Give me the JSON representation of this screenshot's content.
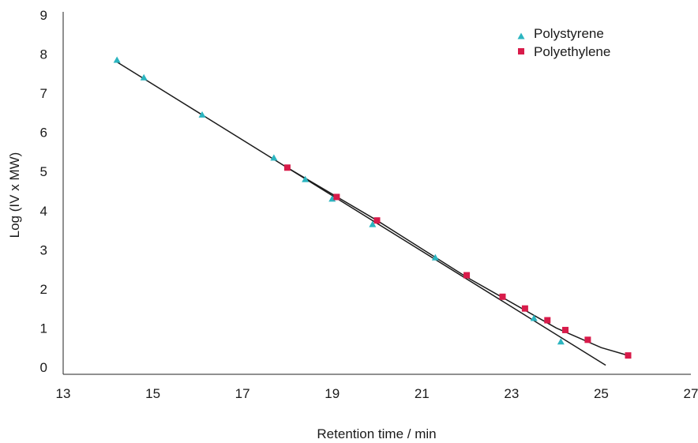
{
  "chart_data": {
    "type": "scatter",
    "title": "",
    "xlabel": "Retention time / min",
    "ylabel": "Log (IV x MW)",
    "xlim": [
      13,
      27
    ],
    "ylim": [
      0,
      9
    ],
    "x_ticks": [
      13,
      15,
      17,
      19,
      21,
      23,
      25,
      27
    ],
    "y_ticks": [
      0,
      1,
      2,
      3,
      4,
      5,
      6,
      7,
      8,
      9
    ],
    "grid": false,
    "legend_position": "top-right",
    "series": [
      {
        "name": "Polystyrene",
        "marker": "triangle",
        "color": "#2bb5c0",
        "points": [
          [
            14.2,
            7.85
          ],
          [
            14.8,
            7.4
          ],
          [
            16.1,
            6.45
          ],
          [
            17.7,
            5.35
          ],
          [
            18.4,
            4.8
          ],
          [
            19.0,
            4.3
          ],
          [
            19.9,
            3.65
          ],
          [
            21.3,
            2.8
          ],
          [
            23.5,
            1.25
          ],
          [
            24.1,
            0.65
          ]
        ]
      },
      {
        "name": "Polyethylene",
        "marker": "square",
        "color": "#d81b4a",
        "points": [
          [
            18.0,
            5.1
          ],
          [
            19.1,
            4.35
          ],
          [
            20.0,
            3.75
          ],
          [
            22.0,
            2.35
          ],
          [
            22.8,
            1.8
          ],
          [
            23.3,
            1.5
          ],
          [
            23.8,
            1.2
          ],
          [
            24.2,
            0.95
          ],
          [
            24.7,
            0.7
          ],
          [
            25.6,
            0.3
          ]
        ]
      }
    ],
    "fit_lines": [
      {
        "series": "Polystyrene",
        "points": [
          [
            14.2,
            7.8
          ],
          [
            25.1,
            0.05
          ]
        ]
      },
      {
        "series": "Polyethylene",
        "points": [
          [
            18.0,
            5.1
          ],
          [
            20.0,
            3.75
          ],
          [
            22.0,
            2.3
          ],
          [
            24.0,
            1.0
          ],
          [
            25.0,
            0.5
          ],
          [
            25.6,
            0.3
          ]
        ]
      }
    ]
  }
}
